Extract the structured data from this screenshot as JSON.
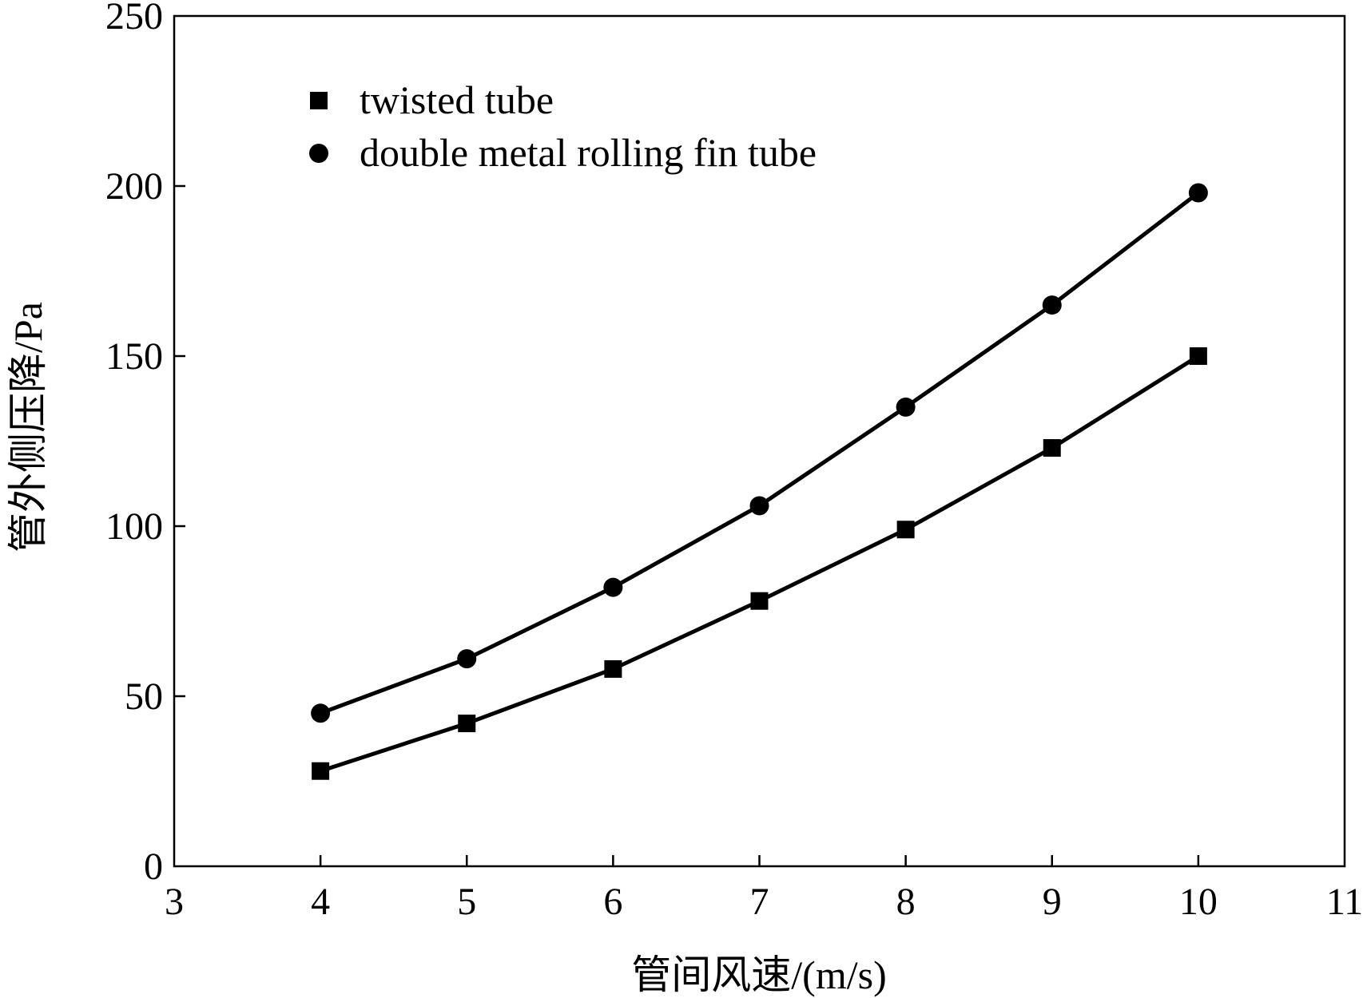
{
  "chart_data": {
    "type": "line",
    "x": [
      4,
      5,
      6,
      7,
      8,
      9,
      10
    ],
    "series": [
      {
        "name": "twisted tube",
        "marker": "square",
        "values": [
          28,
          42,
          58,
          78,
          99,
          123,
          150
        ]
      },
      {
        "name": "double metal rolling fin tube",
        "marker": "circle",
        "values": [
          45,
          61,
          82,
          106,
          135,
          165,
          198
        ]
      }
    ],
    "xlabel": "管间风速/(m/s)",
    "ylabel": "管外侧压降/Pa",
    "xlim": [
      3,
      11
    ],
    "ylim": [
      0,
      250
    ],
    "xticks": [
      "3",
      "4",
      "5",
      "6",
      "7",
      "8",
      "9",
      "10",
      "11"
    ],
    "yticks": [
      "0",
      "50",
      "100",
      "150",
      "200",
      "250"
    ],
    "grid": false,
    "legend_position": "top-left",
    "line_color": "#000000"
  }
}
